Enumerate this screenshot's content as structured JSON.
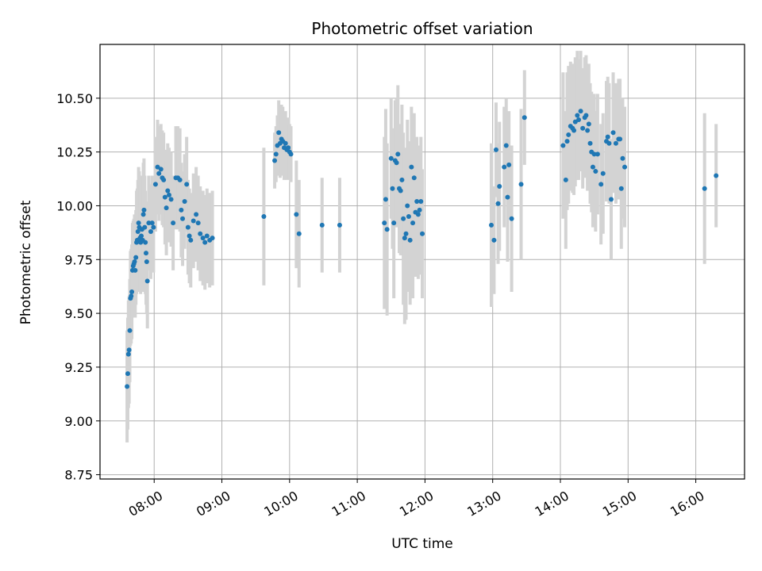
{
  "chart_data": {
    "type": "scatter",
    "title": "Photometric offset variation",
    "xlabel": "UTC time",
    "ylabel": "Photometric offset",
    "x_unit": "hours (UTC)",
    "xlim": [
      7.2,
      16.72
    ],
    "ylim": [
      8.73,
      10.75
    ],
    "x_ticks": [
      {
        "value": 8,
        "label": "08:00"
      },
      {
        "value": 9,
        "label": "09:00"
      },
      {
        "value": 10,
        "label": "10:00"
      },
      {
        "value": 11,
        "label": "11:00"
      },
      {
        "value": 12,
        "label": "12:00"
      },
      {
        "value": 13,
        "label": "13:00"
      },
      {
        "value": 14,
        "label": "14:00"
      },
      {
        "value": 15,
        "label": "15:00"
      },
      {
        "value": 16,
        "label": "16:00"
      }
    ],
    "y_ticks": [
      {
        "value": 8.75,
        "label": "8.75"
      },
      {
        "value": 9.0,
        "label": "9.00"
      },
      {
        "value": 9.25,
        "label": "9.25"
      },
      {
        "value": 9.5,
        "label": "9.50"
      },
      {
        "value": 9.75,
        "label": "9.75"
      },
      {
        "value": 10.0,
        "label": "10.00"
      },
      {
        "value": 10.25,
        "label": "10.25"
      },
      {
        "value": 10.5,
        "label": "10.50"
      }
    ],
    "grid": true,
    "colors": {
      "point": "#1f77b4",
      "errorbar": "#d3d3d3",
      "grid": "#b0b0b0"
    },
    "series": [
      {
        "points": [
          [
            7.6,
            9.16,
            0.26
          ],
          [
            7.61,
            9.22,
            0.26
          ],
          [
            7.62,
            9.31,
            0.25
          ],
          [
            7.63,
            9.33,
            0.25
          ],
          [
            7.64,
            9.42,
            0.24
          ],
          [
            7.65,
            9.57,
            0.22
          ],
          [
            7.66,
            9.58,
            0.22
          ],
          [
            7.67,
            9.6,
            0.22
          ],
          [
            7.68,
            9.7,
            0.22
          ],
          [
            7.69,
            9.72,
            0.21
          ],
          [
            7.7,
            9.73,
            0.21
          ],
          [
            7.71,
            9.74,
            0.22
          ],
          [
            7.72,
            9.7,
            0.22
          ],
          [
            7.73,
            9.76,
            0.22
          ],
          [
            7.74,
            9.83,
            0.24
          ],
          [
            7.75,
            9.84,
            0.24
          ],
          [
            7.76,
            9.88,
            0.24
          ],
          [
            7.77,
            9.92,
            0.26
          ],
          [
            7.78,
            9.9,
            0.26
          ],
          [
            7.79,
            9.85,
            0.25
          ],
          [
            7.8,
            9.83,
            0.24
          ],
          [
            7.81,
            9.86,
            0.24
          ],
          [
            7.82,
            9.89,
            0.25
          ],
          [
            7.83,
            9.84,
            0.24
          ],
          [
            7.84,
            9.96,
            0.24
          ],
          [
            7.85,
            9.98,
            0.24
          ],
          [
            7.86,
            9.9,
            0.24
          ],
          [
            7.87,
            9.83,
            0.24
          ],
          [
            7.88,
            9.78,
            0.24
          ],
          [
            7.89,
            9.74,
            0.24
          ],
          [
            7.9,
            9.65,
            0.22
          ],
          [
            7.92,
            9.92,
            0.22
          ],
          [
            7.95,
            9.88,
            0.22
          ],
          [
            7.97,
            9.92,
            0.22
          ],
          [
            7.99,
            9.9,
            0.21
          ],
          [
            8.02,
            10.1,
            0.22
          ],
          [
            8.05,
            10.18,
            0.22
          ],
          [
            8.07,
            10.15,
            0.22
          ],
          [
            8.1,
            10.17,
            0.21
          ],
          [
            8.12,
            10.13,
            0.22
          ],
          [
            8.14,
            10.12,
            0.22
          ],
          [
            8.16,
            10.04,
            0.22
          ],
          [
            8.18,
            9.99,
            0.22
          ],
          [
            8.2,
            10.07,
            0.22
          ],
          [
            8.22,
            10.05,
            0.22
          ],
          [
            8.25,
            10.03,
            0.22
          ],
          [
            8.28,
            9.92,
            0.22
          ],
          [
            8.32,
            10.13,
            0.24
          ],
          [
            8.35,
            10.13,
            0.24
          ],
          [
            8.38,
            10.12,
            0.24
          ],
          [
            8.4,
            9.98,
            0.22
          ],
          [
            8.42,
            9.94,
            0.22
          ],
          [
            8.45,
            10.02,
            0.22
          ],
          [
            8.48,
            10.1,
            0.22
          ],
          [
            8.5,
            9.9,
            0.22
          ],
          [
            8.52,
            9.86,
            0.22
          ],
          [
            8.54,
            9.84,
            0.22
          ],
          [
            8.58,
            9.93,
            0.22
          ],
          [
            8.62,
            9.96,
            0.22
          ],
          [
            8.65,
            9.92,
            0.22
          ],
          [
            8.68,
            9.87,
            0.22
          ],
          [
            8.72,
            9.85,
            0.22
          ],
          [
            8.75,
            9.83,
            0.22
          ],
          [
            8.78,
            9.86,
            0.22
          ],
          [
            8.82,
            9.84,
            0.22
          ],
          [
            8.86,
            9.85,
            0.22
          ],
          [
            9.62,
            9.95,
            0.32
          ],
          [
            9.78,
            10.21,
            0.13
          ],
          [
            9.8,
            10.24,
            0.13
          ],
          [
            9.82,
            10.28,
            0.14
          ],
          [
            9.84,
            10.34,
            0.15
          ],
          [
            9.86,
            10.29,
            0.16
          ],
          [
            9.88,
            10.31,
            0.16
          ],
          [
            9.9,
            10.3,
            0.16
          ],
          [
            9.92,
            10.27,
            0.15
          ],
          [
            9.94,
            10.29,
            0.15
          ],
          [
            9.96,
            10.26,
            0.14
          ],
          [
            9.98,
            10.27,
            0.14
          ],
          [
            10.0,
            10.25,
            0.13
          ],
          [
            10.02,
            10.24,
            0.13
          ],
          [
            10.1,
            9.96,
            0.25
          ],
          [
            10.14,
            9.87,
            0.25
          ],
          [
            10.48,
            9.91,
            0.22
          ],
          [
            10.74,
            9.91,
            0.22
          ],
          [
            11.4,
            9.92,
            0.4
          ],
          [
            11.42,
            10.03,
            0.42
          ],
          [
            11.44,
            9.89,
            0.4
          ],
          [
            11.5,
            10.22,
            0.28
          ],
          [
            11.52,
            10.08,
            0.28
          ],
          [
            11.54,
            9.92,
            0.35
          ],
          [
            11.56,
            10.21,
            0.28
          ],
          [
            11.58,
            10.2,
            0.3
          ],
          [
            11.6,
            10.24,
            0.32
          ],
          [
            11.62,
            10.08,
            0.3
          ],
          [
            11.64,
            10.07,
            0.3
          ],
          [
            11.66,
            10.12,
            0.35
          ],
          [
            11.68,
            9.94,
            0.4
          ],
          [
            11.7,
            9.85,
            0.4
          ],
          [
            11.72,
            9.87,
            0.4
          ],
          [
            11.74,
            10.0,
            0.4
          ],
          [
            11.76,
            9.95,
            0.35
          ],
          [
            11.78,
            9.84,
            0.3
          ],
          [
            11.8,
            10.18,
            0.28
          ],
          [
            11.82,
            9.92,
            0.35
          ],
          [
            11.84,
            10.13,
            0.3
          ],
          [
            11.86,
            9.97,
            0.3
          ],
          [
            11.88,
            10.02,
            0.3
          ],
          [
            11.9,
            9.96,
            0.3
          ],
          [
            11.92,
            9.98,
            0.3
          ],
          [
            11.94,
            10.02,
            0.3
          ],
          [
            11.96,
            9.87,
            0.3
          ],
          [
            12.98,
            9.91,
            0.38
          ],
          [
            13.02,
            9.84,
            0.25
          ],
          [
            13.05,
            10.26,
            0.22
          ],
          [
            13.08,
            10.01,
            0.28
          ],
          [
            13.1,
            10.09,
            0.3
          ],
          [
            13.17,
            10.18,
            0.28
          ],
          [
            13.2,
            10.28,
            0.22
          ],
          [
            13.22,
            10.04,
            0.3
          ],
          [
            13.24,
            10.19,
            0.25
          ],
          [
            13.28,
            9.94,
            0.34
          ],
          [
            13.42,
            10.1,
            0.35
          ],
          [
            13.47,
            10.41,
            0.22
          ],
          [
            14.04,
            10.28,
            0.34
          ],
          [
            14.08,
            10.12,
            0.32
          ],
          [
            14.1,
            10.3,
            0.32
          ],
          [
            14.12,
            10.33,
            0.32
          ],
          [
            14.15,
            10.37,
            0.3
          ],
          [
            14.18,
            10.36,
            0.3
          ],
          [
            14.2,
            10.35,
            0.3
          ],
          [
            14.22,
            10.39,
            0.3
          ],
          [
            14.25,
            10.42,
            0.3
          ],
          [
            14.27,
            10.4,
            0.28
          ],
          [
            14.3,
            10.44,
            0.28
          ],
          [
            14.33,
            10.36,
            0.28
          ],
          [
            14.36,
            10.41,
            0.28
          ],
          [
            14.38,
            10.42,
            0.28
          ],
          [
            14.4,
            10.35,
            0.28
          ],
          [
            14.42,
            10.38,
            0.28
          ],
          [
            14.44,
            10.29,
            0.28
          ],
          [
            14.46,
            10.25,
            0.28
          ],
          [
            14.48,
            10.18,
            0.28
          ],
          [
            14.5,
            10.24,
            0.28
          ],
          [
            14.52,
            10.16,
            0.28
          ],
          [
            14.55,
            10.24,
            0.28
          ],
          [
            14.6,
            10.1,
            0.28
          ],
          [
            14.63,
            10.15,
            0.28
          ],
          [
            14.68,
            10.3,
            0.28
          ],
          [
            14.7,
            10.32,
            0.28
          ],
          [
            14.72,
            10.29,
            0.28
          ],
          [
            14.75,
            10.03,
            0.28
          ],
          [
            14.78,
            10.34,
            0.28
          ],
          [
            14.82,
            10.29,
            0.28
          ],
          [
            14.86,
            10.31,
            0.28
          ],
          [
            14.88,
            10.31,
            0.28
          ],
          [
            14.9,
            10.08,
            0.28
          ],
          [
            14.92,
            10.22,
            0.28
          ],
          [
            14.95,
            10.18,
            0.28
          ],
          [
            16.13,
            10.08,
            0.35
          ],
          [
            16.3,
            10.14,
            0.24
          ]
        ]
      }
    ]
  }
}
